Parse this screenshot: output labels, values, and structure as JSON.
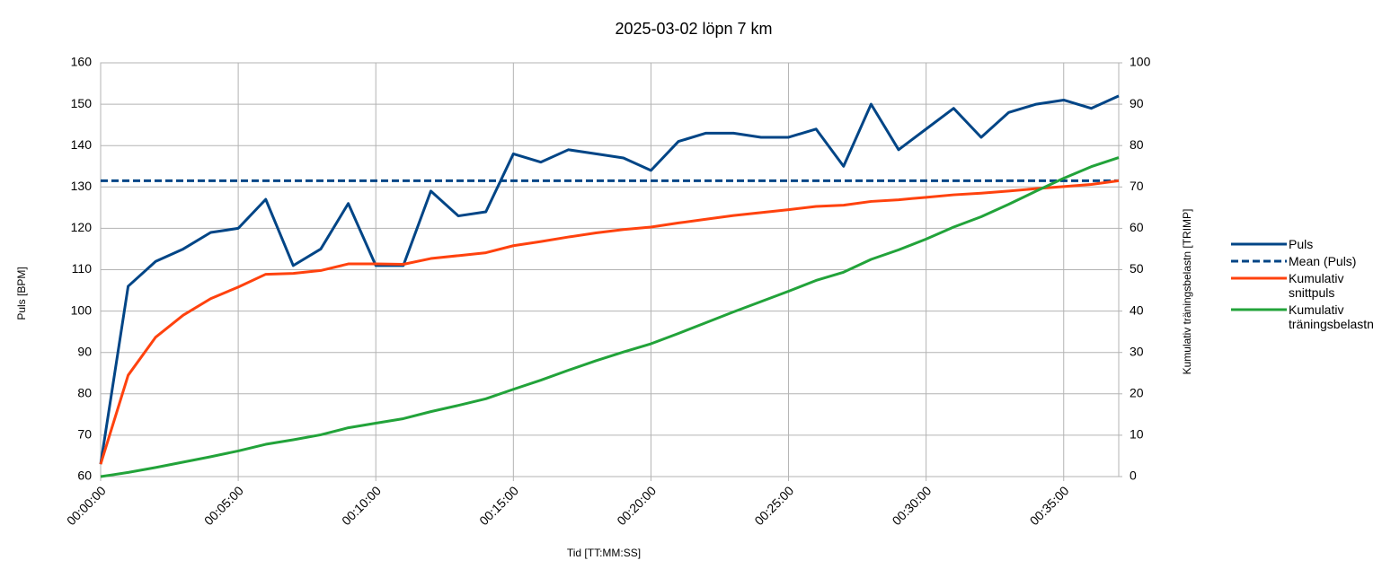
{
  "chart_data": {
    "type": "line",
    "title": "2025-03-02 löpn 7 km",
    "xlabel": "Tid [TT:MM:SS]",
    "ylabel": "Puls [BPM]",
    "y2label": "Kumulativ träningsbelastn [TRIMP]",
    "x": [
      0,
      60,
      120,
      180,
      240,
      300,
      360,
      420,
      480,
      540,
      600,
      660,
      720,
      780,
      840,
      900,
      960,
      1020,
      1080,
      1140,
      1200,
      1260,
      1320,
      1380,
      1440,
      1500,
      1560,
      1620,
      1680,
      1740,
      1800,
      1860,
      1920,
      1980,
      2040,
      2100,
      2160,
      2220
    ],
    "xlim": [
      0,
      2220
    ],
    "xticks": [
      {
        "value": 0,
        "label": "00:00:00"
      },
      {
        "value": 300,
        "label": "00:05:00"
      },
      {
        "value": 600,
        "label": "00:10:00"
      },
      {
        "value": 900,
        "label": "00:15:00"
      },
      {
        "value": 1200,
        "label": "00:20:00"
      },
      {
        "value": 1500,
        "label": "00:25:00"
      },
      {
        "value": 1800,
        "label": "00:30:00"
      },
      {
        "value": 2100,
        "label": "00:35:00"
      }
    ],
    "ylim": [
      60,
      160
    ],
    "yticks": [
      60,
      70,
      80,
      90,
      100,
      110,
      120,
      130,
      140,
      150,
      160
    ],
    "y2lim": [
      0,
      100
    ],
    "y2ticks": [
      0,
      10,
      20,
      30,
      40,
      50,
      60,
      70,
      80,
      90,
      100
    ],
    "grid": true,
    "legend": "right",
    "series": [
      {
        "name": "Puls",
        "color": "#004586",
        "linestyle": "solid",
        "values": [
          63,
          106,
          112,
          115,
          119,
          120,
          127,
          111,
          115,
          126,
          111,
          111,
          129,
          123,
          124,
          138,
          136,
          139,
          138,
          137,
          134,
          141,
          143,
          143,
          142,
          142,
          144,
          135,
          150,
          139,
          144,
          149,
          142,
          148,
          150,
          151,
          149,
          152
        ]
      },
      {
        "name": "Mean (Puls)",
        "color": "#004586",
        "linestyle": "dashed",
        "x": [
          0,
          2220
        ],
        "values": [
          131.5,
          131.5
        ]
      },
      {
        "name": "Kumulativ snittpuls",
        "color": "#ff420e",
        "linestyle": "solid",
        "values": [
          63,
          84.5,
          93.7,
          99,
          103,
          105.8,
          108.9,
          109.1,
          109.8,
          111.4,
          111.4,
          111.3,
          112.7,
          113.4,
          114.1,
          115.8,
          116.8,
          117.9,
          118.9,
          119.7,
          120.3,
          121.3,
          122.2,
          123.1,
          123.8,
          124.5,
          125.3,
          125.6,
          126.5,
          126.9,
          127.5,
          128.1,
          128.5,
          129,
          129.6,
          130.1,
          130.6,
          131.5
        ]
      },
      {
        "name": "Kumulativ träningsbelastn",
        "color": "#22a33a",
        "linestyle": "solid",
        "axis": "y2",
        "values": [
          0,
          1,
          2.2,
          3.5,
          4.8,
          6.2,
          7.8,
          8.9,
          10.1,
          11.8,
          12.9,
          14,
          15.7,
          17.2,
          18.8,
          21.1,
          23.3,
          25.7,
          28,
          30.1,
          32.1,
          34.6,
          37.2,
          39.8,
          42.3,
          44.8,
          47.4,
          49.4,
          52.5,
          54.8,
          57.4,
          60.3,
          62.8,
          65.8,
          69,
          72.1,
          74.9,
          77.1
        ]
      }
    ]
  }
}
